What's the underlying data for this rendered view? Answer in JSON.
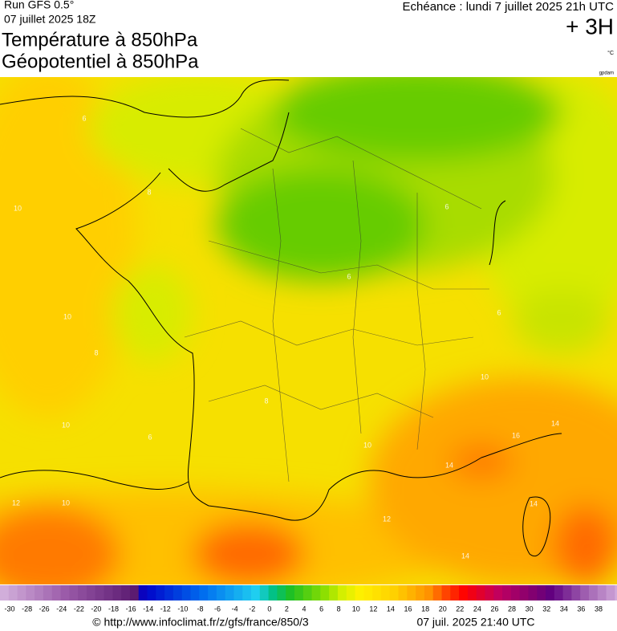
{
  "header": {
    "run": "Run GFS 0.5°",
    "date": "07 juillet 2025 18Z",
    "title_line1": "Température à 850hPa",
    "title_line2": "Géopotentiel à 850hPa",
    "echeance": "Echéance : lundi 7 juillet 2025 21h UTC",
    "lead": "+ 3H",
    "unit": "°C",
    "credit": "gpdam"
  },
  "contour_labels": [
    6,
    10,
    8,
    10,
    8,
    10,
    6,
    12,
    10,
    6,
    6,
    6,
    8,
    10,
    10,
    14,
    16,
    14,
    12,
    14,
    14
  ],
  "colorbar": {
    "ticks": [
      -30,
      -28,
      -26,
      -24,
      -22,
      -20,
      -18,
      -16,
      -14,
      -12,
      -10,
      -8,
      -6,
      -4,
      -2,
      0,
      2,
      4,
      6,
      8,
      10,
      12,
      14,
      16,
      18,
      20,
      22,
      24,
      26,
      28,
      30,
      32,
      34,
      36,
      38
    ]
  },
  "footer": {
    "source": "© http://www.infoclimat.fr/z/gfs/france/850/3",
    "timestamp": "07 juil. 2025 21:40 UTC"
  }
}
